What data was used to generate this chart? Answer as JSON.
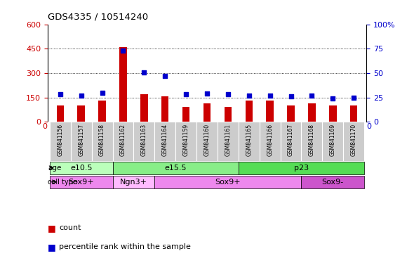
{
  "title": "GDS4335 / 10514240",
  "samples": [
    "GSM841156",
    "GSM841157",
    "GSM841158",
    "GSM841162",
    "GSM841163",
    "GSM841164",
    "GSM841159",
    "GSM841160",
    "GSM841161",
    "GSM841165",
    "GSM841166",
    "GSM841167",
    "GSM841168",
    "GSM841169",
    "GSM841170"
  ],
  "counts": [
    100,
    100,
    130,
    460,
    170,
    155,
    90,
    115,
    90,
    130,
    130,
    100,
    115,
    100,
    100
  ],
  "percentiles": [
    28,
    27,
    30,
    73,
    51,
    47,
    28,
    29,
    28,
    27,
    27,
    26,
    27,
    24,
    25
  ],
  "ylim_left": [
    0,
    600
  ],
  "ylim_right": [
    0,
    100
  ],
  "yticks_left": [
    0,
    150,
    300,
    450,
    600
  ],
  "yticks_right": [
    0,
    25,
    50,
    75,
    100
  ],
  "bar_color": "#cc0000",
  "dot_color": "#0000cc",
  "age_groups": [
    {
      "label": "e10.5",
      "start": 0,
      "end": 3,
      "color": "#bbffbb"
    },
    {
      "label": "e15.5",
      "start": 3,
      "end": 9,
      "color": "#88ee88"
    },
    {
      "label": "p23",
      "start": 9,
      "end": 15,
      "color": "#55dd55"
    }
  ],
  "cell_groups": [
    {
      "label": "Sox9+",
      "start": 0,
      "end": 3,
      "color": "#ee88ee"
    },
    {
      "label": "Ngn3+",
      "start": 3,
      "end": 5,
      "color": "#ffbbff"
    },
    {
      "label": "Sox9+",
      "start": 5,
      "end": 12,
      "color": "#ee88ee"
    },
    {
      "label": "Sox9-",
      "start": 12,
      "end": 15,
      "color": "#cc55cc"
    }
  ],
  "bg_color": "#ffffff",
  "tick_bg_color": "#cccccc",
  "grid_dotted_color": "#000000"
}
